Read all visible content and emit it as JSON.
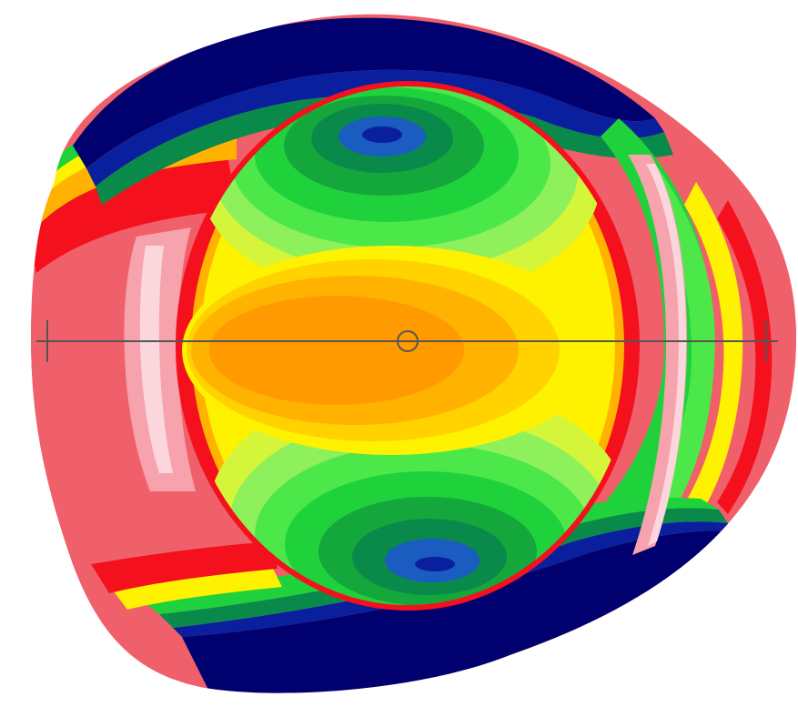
{
  "image": {
    "kind": "color-contour-map",
    "background_color": "#ffffff",
    "colors": {
      "navy": "#00006e",
      "deep_blue": "#0a1f9e",
      "blue": "#1a5cc0",
      "teal": "#0a8a4a",
      "dark_green": "#14a83c",
      "green": "#1fd23c",
      "bright_green": "#4ce84a",
      "light_green": "#8ef05a",
      "yellow_green": "#d4f53a",
      "yellow": "#fff200",
      "gold": "#ffd200",
      "amber": "#ffb200",
      "orange": "#ff9a00",
      "red": "#f5101e",
      "salmon": "#f0606a",
      "pink": "#f6a3ad",
      "light_pink": "#fbd6dc",
      "axis_line": "#555555"
    },
    "overlay": {
      "axis_line": "horizontal-axis",
      "center_marker": "circle-marker",
      "end_ticks": [
        "left-tick",
        "right-tick"
      ]
    }
  }
}
